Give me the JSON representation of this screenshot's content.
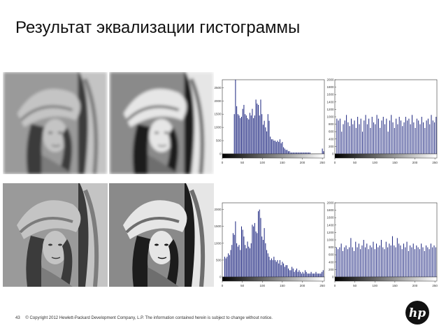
{
  "slide": {
    "title": "Результат эквализации гистограммы",
    "page_number": "43",
    "copyright": "© Copyright 2012 Hewlett-Packard Development Company, L.P.  The information contained herein is subject to change without notice.",
    "logo_text": "hp"
  },
  "photos": [
    {
      "name": "blurred-original",
      "style": "blurred"
    },
    {
      "name": "blurred-equalized",
      "style": "blurred-equalized"
    },
    {
      "name": "sharp-original",
      "style": "sharp"
    },
    {
      "name": "sharp-equalized",
      "style": "sharp-equalized"
    }
  ],
  "colors": {
    "bar": "#1a237e",
    "axis": "#333333"
  },
  "chart_data": [
    {
      "type": "bar",
      "title": "",
      "xlim": [
        0,
        255
      ],
      "ylim": [
        0,
        2800
      ],
      "x_ticks": [
        "0",
        "50",
        "100",
        "150",
        "200",
        "250"
      ],
      "y_ticks": [
        "0",
        "500",
        "1000",
        "1500",
        "2000",
        "2500"
      ],
      "x": [
        30,
        33,
        36,
        39,
        42,
        45,
        48,
        51,
        54,
        57,
        60,
        63,
        66,
        69,
        72,
        75,
        78,
        81,
        84,
        87,
        90,
        93,
        96,
        99,
        102,
        105,
        108,
        111,
        114,
        117,
        120,
        123,
        126,
        129,
        132,
        135,
        138,
        141,
        144,
        147,
        150,
        153,
        156,
        159,
        162,
        165,
        168,
        171,
        174,
        177,
        180,
        183,
        186,
        189,
        192,
        195,
        198,
        201,
        204,
        207,
        210,
        213,
        216,
        219,
        250,
        253
      ],
      "values": [
        1500,
        2800,
        1800,
        1500,
        1450,
        1350,
        1400,
        1700,
        1850,
        1500,
        1450,
        1350,
        1300,
        1550,
        1450,
        1700,
        1350,
        1450,
        2050,
        1900,
        1850,
        1450,
        2050,
        1500,
        1100,
        1250,
        1000,
        850,
        1500,
        1250,
        650,
        550,
        550,
        500,
        500,
        450,
        500,
        450,
        550,
        400,
        450,
        250,
        200,
        150,
        150,
        100,
        100,
        50,
        50,
        50,
        50,
        50,
        50,
        50,
        50,
        50,
        50,
        50,
        50,
        50,
        50,
        50,
        50,
        50,
        200,
        100
      ]
    },
    {
      "type": "bar",
      "title": "",
      "xlim": [
        0,
        255
      ],
      "ylim": [
        0,
        2000
      ],
      "x_ticks": [
        "0",
        "50",
        "100",
        "150",
        "200",
        "250"
      ],
      "y_ticks": [
        "0",
        "200",
        "400",
        "600",
        "800",
        "1000",
        "1200",
        "1400",
        "1600",
        "1800",
        "2000"
      ],
      "x": [
        5,
        9,
        13,
        17,
        21,
        25,
        29,
        33,
        37,
        41,
        45,
        49,
        53,
        57,
        61,
        65,
        69,
        73,
        77,
        81,
        85,
        89,
        93,
        97,
        101,
        105,
        109,
        113,
        117,
        121,
        125,
        129,
        133,
        137,
        141,
        145,
        149,
        153,
        157,
        161,
        165,
        169,
        173,
        177,
        181,
        185,
        189,
        193,
        197,
        201,
        205,
        209,
        213,
        217,
        221,
        225,
        229,
        233,
        237,
        241,
        245,
        249,
        253
      ],
      "values": [
        950,
        900,
        950,
        600,
        800,
        900,
        1050,
        850,
        750,
        950,
        800,
        900,
        700,
        1000,
        800,
        950,
        600,
        900,
        1050,
        800,
        950,
        700,
        1000,
        850,
        800,
        1050,
        950,
        700,
        900,
        1000,
        800,
        950,
        600,
        900,
        1050,
        850,
        700,
        950,
        800,
        1000,
        900,
        750,
        850,
        1000,
        900,
        950,
        800,
        1050,
        850,
        700,
        950,
        900,
        800,
        1000,
        850,
        700,
        900,
        950,
        800,
        1050,
        900,
        850,
        1000
      ]
    },
    {
      "type": "bar",
      "title": "",
      "xlim": [
        0,
        255
      ],
      "ylim": [
        0,
        2200
      ],
      "x_ticks": [
        "0",
        "50",
        "100",
        "150",
        "200",
        "250"
      ],
      "y_ticks": [
        "0",
        "500",
        "1000",
        "1500",
        "2000"
      ],
      "x": [
        6,
        9,
        12,
        15,
        18,
        21,
        24,
        27,
        30,
        33,
        36,
        39,
        42,
        45,
        48,
        51,
        54,
        57,
        60,
        63,
        66,
        69,
        72,
        75,
        78,
        81,
        84,
        87,
        90,
        93,
        96,
        99,
        102,
        105,
        108,
        111,
        114,
        117,
        120,
        123,
        126,
        129,
        132,
        135,
        138,
        141,
        144,
        147,
        150,
        153,
        156,
        159,
        162,
        165,
        168,
        171,
        174,
        177,
        180,
        183,
        186,
        189,
        192,
        195,
        198,
        201,
        204,
        207,
        210,
        213,
        216,
        219,
        222,
        225,
        228,
        231,
        234,
        237,
        240,
        243,
        246,
        249,
        252
      ],
      "values": [
        600,
        550,
        600,
        700,
        650,
        800,
        950,
        1300,
        1250,
        1650,
        1000,
        900,
        950,
        800,
        1500,
        1400,
        1200,
        950,
        850,
        1050,
        900,
        850,
        1000,
        1550,
        1500,
        1600,
        1350,
        1300,
        1950,
        2000,
        1750,
        1200,
        1100,
        1450,
        1000,
        800,
        700,
        600,
        500,
        550,
        500,
        600,
        500,
        450,
        500,
        400,
        500,
        350,
        450,
        400,
        300,
        350,
        350,
        250,
        200,
        200,
        300,
        250,
        150,
        200,
        250,
        150,
        200,
        150,
        100,
        150,
        100,
        200,
        150,
        100,
        100,
        100,
        150,
        100,
        100,
        100,
        150,
        100,
        100,
        100,
        100,
        150,
        200
      ]
    },
    {
      "type": "bar",
      "title": "",
      "xlim": [
        0,
        255
      ],
      "ylim": [
        0,
        2000
      ],
      "x_ticks": [
        "0",
        "50",
        "100",
        "150",
        "200",
        "250"
      ],
      "y_ticks": [
        "0",
        "200",
        "400",
        "600",
        "800",
        "1000",
        "1200",
        "1400",
        "1600",
        "1800",
        "2000"
      ],
      "x": [
        4,
        8,
        12,
        16,
        20,
        24,
        28,
        32,
        36,
        40,
        44,
        48,
        52,
        56,
        60,
        64,
        68,
        72,
        76,
        80,
        84,
        88,
        92,
        96,
        100,
        104,
        108,
        112,
        116,
        120,
        124,
        128,
        132,
        136,
        140,
        144,
        148,
        152,
        156,
        160,
        164,
        168,
        172,
        176,
        180,
        184,
        188,
        192,
        196,
        200,
        204,
        208,
        212,
        216,
        220,
        224,
        228,
        232,
        236,
        240,
        244,
        248,
        252
      ],
      "values": [
        800,
        750,
        800,
        900,
        700,
        800,
        850,
        750,
        800,
        1050,
        800,
        700,
        950,
        800,
        900,
        750,
        850,
        1000,
        800,
        900,
        750,
        850,
        800,
        950,
        750,
        900,
        800,
        850,
        1000,
        800,
        750,
        950,
        800,
        900,
        850,
        1100,
        850,
        800,
        1050,
        900,
        850,
        750,
        900,
        800,
        950,
        700,
        850,
        800,
        900,
        750,
        850,
        800,
        750,
        900,
        800,
        700,
        850,
        800,
        750,
        900,
        800,
        850,
        800
      ]
    }
  ]
}
